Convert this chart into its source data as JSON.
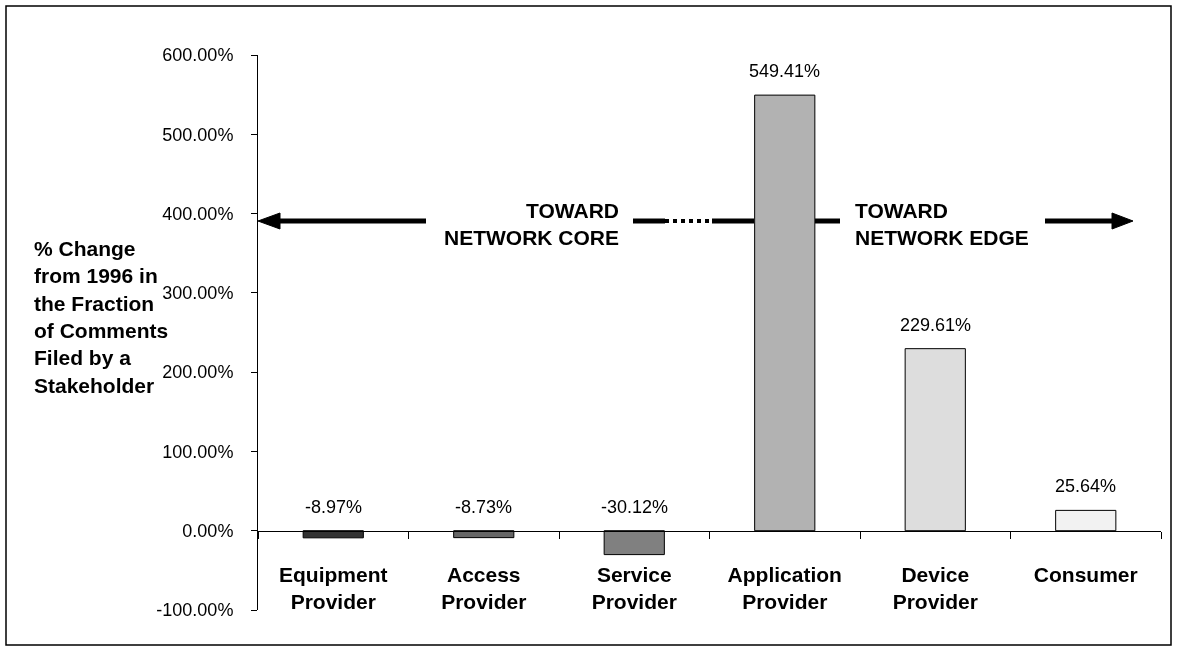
{
  "chart_data": {
    "type": "bar",
    "ylabel": "% Change from 1996 in the Fraction of Comments Filed by a Stakeholder",
    "categories": [
      "Equipment Provider",
      "Access Provider",
      "Service Provider",
      "Application Provider",
      "Device Provider",
      "Consumer"
    ],
    "values": [
      -8.97,
      -8.73,
      -30.12,
      549.41,
      229.61,
      25.64
    ],
    "colors": [
      "#333333",
      "#666666",
      "#808080",
      "#b2b2b2",
      "#dddddd",
      "#f2f2f2"
    ],
    "value_labels": [
      "-8.97%",
      "-8.73%",
      "-30.12%",
      "549.41%",
      "229.61%",
      "25.64%"
    ],
    "ylim": [
      -100,
      600
    ],
    "yticks": [
      {
        "value": -100,
        "label": "-100.00%"
      },
      {
        "value": 0,
        "label": "0.00%"
      },
      {
        "value": 100,
        "label": "100.00%"
      },
      {
        "value": 200,
        "label": "200.00%"
      },
      {
        "value": 300,
        "label": "300.00%"
      },
      {
        "value": 400,
        "label": "400.00%"
      },
      {
        "value": 500,
        "label": "500.00%"
      },
      {
        "value": 600,
        "label": "600.00%"
      }
    ],
    "annotations": [
      "TOWARD NETWORK CORE",
      "TOWARD NETWORK EDGE"
    ],
    "grid": false
  }
}
